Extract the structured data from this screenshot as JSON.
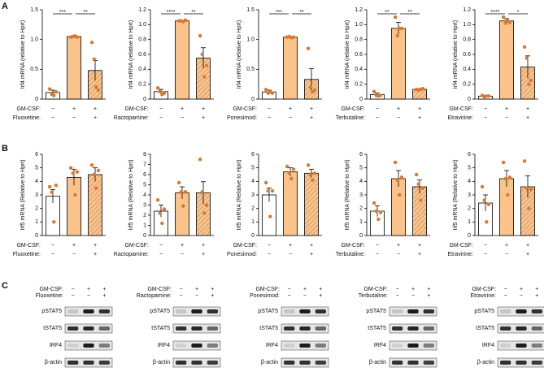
{
  "panel_labels": [
    "A",
    "B",
    "C"
  ],
  "chart_data": [
    {
      "type": "bar",
      "ylabel": "Irf4 mRNA (relative to Hprt)",
      "ylim": [
        0,
        1.5
      ],
      "yticks": [
        0,
        0.5,
        {
          "value": 1,
          "label": "1.0"
        },
        1.5
      ],
      "values": [
        0.11,
        1.05,
        0.48
      ],
      "errors": [
        0.04,
        0.01,
        0.17
      ],
      "points": [
        [
          0.17,
          0.08,
          0.06,
          0.12
        ],
        [
          1.04,
          1.05,
          1.06,
          1.04
        ],
        [
          0.95,
          0.67,
          0.2,
          0.15
        ]
      ],
      "colors": [
        "#ffffff",
        "#fbc38c",
        "#fbc38c"
      ],
      "hatch": [
        false,
        false,
        true
      ],
      "point_color": "#d9782e",
      "rows": [
        {
          "label": "GM-CSF:",
          "signs": [
            "−",
            "+",
            "+"
          ]
        },
        {
          "label": "Fluoxetine:",
          "signs": [
            "−",
            "−",
            "+"
          ]
        }
      ],
      "significance": [
        {
          "from": 0,
          "to": 1,
          "label": "***"
        },
        {
          "from": 1,
          "to": 2,
          "label": "**"
        }
      ]
    },
    {
      "type": "bar",
      "ylabel": "Irf4 mRNA (relative to Hprt)",
      "ylim": [
        0,
        1.2
      ],
      "yticks": [
        0,
        0.2,
        0.4,
        0.6,
        0.8,
        {
          "value": 1,
          "label": "1.0"
        },
        1.2
      ],
      "values": [
        0.1,
        1.05,
        0.55
      ],
      "errors": [
        0.03,
        0.01,
        0.14
      ],
      "points": [
        [
          0.15,
          0.1,
          0.06,
          0.08
        ],
        [
          1.05,
          1.05,
          1.04,
          1.06
        ],
        [
          0.85,
          0.6,
          0.3,
          0.45
        ]
      ],
      "colors": [
        "#ffffff",
        "#fbc38c",
        "#fbc38c"
      ],
      "hatch": [
        false,
        false,
        true
      ],
      "point_color": "#d9782e",
      "rows": [
        {
          "label": "GM-CSF:",
          "signs": [
            "−",
            "+",
            "+"
          ]
        },
        {
          "label": "Ractopamine:",
          "signs": [
            "−",
            "−",
            "+"
          ]
        }
      ],
      "significance": [
        {
          "from": 0,
          "to": 1,
          "label": "****"
        },
        {
          "from": 1,
          "to": 2,
          "label": "**"
        }
      ]
    },
    {
      "type": "bar",
      "ylabel": "Irf4 mRNA (relative to Hprt)",
      "ylim": [
        0,
        1.5
      ],
      "yticks": [
        0,
        0.5,
        {
          "value": 1,
          "label": "1.0"
        },
        1.5
      ],
      "values": [
        0.12,
        1.04,
        0.33
      ],
      "errors": [
        0.03,
        0.01,
        0.18
      ],
      "points": [
        [
          0.16,
          0.1,
          0.12,
          0.1
        ],
        [
          1.04,
          1.05,
          1.03,
          1.04
        ],
        [
          0.85,
          0.2,
          0.12,
          0.15
        ]
      ],
      "colors": [
        "#ffffff",
        "#fbc38c",
        "#fbc38c"
      ],
      "hatch": [
        false,
        false,
        true
      ],
      "point_color": "#d9782e",
      "rows": [
        {
          "label": "GM-CSF:",
          "signs": [
            "−",
            "+",
            "+"
          ]
        },
        {
          "label": "Ponesimod:",
          "signs": [
            "−",
            "−",
            "+"
          ]
        }
      ],
      "significance": [
        {
          "from": 0,
          "to": 1,
          "label": "***"
        },
        {
          "from": 1,
          "to": 2,
          "label": "**"
        }
      ]
    },
    {
      "type": "bar",
      "ylabel": "Irf4 mRNA (relative to Hprt)",
      "ylim": [
        0,
        1.2
      ],
      "yticks": [
        0,
        0.2,
        0.4,
        0.6,
        0.8,
        {
          "value": 1,
          "label": "1.0"
        },
        1.2
      ],
      "values": [
        0.06,
        0.95,
        0.13
      ],
      "errors": [
        0.02,
        0.08,
        0.01
      ],
      "points": [
        [
          0.1,
          0.05,
          0.04,
          0.05
        ],
        [
          1.1,
          0.85,
          0.95,
          0.95
        ],
        [
          0.13,
          0.12,
          0.13,
          0.14
        ]
      ],
      "colors": [
        "#ffffff",
        "#fbc38c",
        "#fbc38c"
      ],
      "hatch": [
        false,
        false,
        true
      ],
      "point_color": "#d9782e",
      "rows": [
        {
          "label": "GM-CSF:",
          "signs": [
            "−",
            "+",
            "+"
          ]
        },
        {
          "label": "Terbutaline:",
          "signs": [
            "−",
            "−",
            "+"
          ]
        }
      ],
      "significance": [
        {
          "from": 0,
          "to": 1,
          "label": "**"
        },
        {
          "from": 1,
          "to": 2,
          "label": "**"
        }
      ]
    },
    {
      "type": "bar",
      "ylabel": "Irf4 mRNA (relative to Hprt)",
      "ylim": [
        0,
        1.2
      ],
      "yticks": [
        0,
        0.2,
        0.4,
        0.6,
        0.8,
        {
          "value": 1,
          "label": "1.0"
        },
        1.2
      ],
      "values": [
        0.04,
        1.05,
        0.43
      ],
      "errors": [
        0.01,
        0.03,
        0.15
      ],
      "points": [
        [
          0.05,
          0.03,
          0.04,
          0.04
        ],
        [
          1.1,
          1.02,
          1.05,
          1.03
        ],
        [
          0.7,
          0.55,
          0.2,
          0.25
        ]
      ],
      "colors": [
        "#ffffff",
        "#fbc38c",
        "#fbc38c"
      ],
      "hatch": [
        false,
        false,
        true
      ],
      "point_color": "#d9782e",
      "rows": [
        {
          "label": "GM-CSF:",
          "signs": [
            "−",
            "+",
            "+"
          ]
        },
        {
          "label": "Etravirine:",
          "signs": [
            "−",
            "−",
            "+"
          ]
        }
      ],
      "significance": [
        {
          "from": 0,
          "to": 1,
          "label": "****"
        },
        {
          "from": 1,
          "to": 2,
          "label": "*"
        }
      ]
    },
    {
      "type": "bar",
      "ylabel": "Irf5 mRNA (Relative to Hprt)",
      "ylim": [
        0,
        6
      ],
      "yticks": [
        0,
        1,
        2,
        3,
        4,
        5,
        6
      ],
      "values": [
        2.9,
        4.3,
        4.5
      ],
      "errors": [
        0.5,
        0.6,
        0.5
      ],
      "points": [
        [
          3.6,
          3.2,
          1.0,
          3.7
        ],
        [
          5.0,
          4.6,
          3.0,
          4.7
        ],
        [
          5.2,
          4.5,
          3.5,
          4.8
        ]
      ],
      "colors": [
        "#ffffff",
        "#fbc38c",
        "#fbc38c"
      ],
      "hatch": [
        false,
        false,
        true
      ],
      "point_color": "#d9782e",
      "rows": [
        {
          "label": "GM-CSF:",
          "signs": [
            "−",
            "+",
            "+"
          ]
        },
        {
          "label": "Fluoxetine:",
          "signs": [
            "−",
            "−",
            "+"
          ]
        }
      ],
      "significance": []
    },
    {
      "type": "bar",
      "ylabel": "Irf5 mRNA (Relative to Hprt)",
      "ylim": [
        0,
        8
      ],
      "yticks": [
        0,
        1,
        2,
        3,
        4,
        5,
        6,
        7,
        8
      ],
      "values": [
        2.4,
        4.2,
        4.2
      ],
      "errors": [
        0.6,
        0.6,
        1.1
      ],
      "points": [
        [
          3.5,
          2.2,
          1.2,
          2.6
        ],
        [
          5.2,
          4.3,
          2.9,
          4.3
        ],
        [
          7.5,
          4.3,
          2.2,
          3.0
        ]
      ],
      "colors": [
        "#ffffff",
        "#fbc38c",
        "#fbc38c"
      ],
      "hatch": [
        false,
        false,
        true
      ],
      "point_color": "#d9782e",
      "rows": [
        {
          "label": "GM-CSF:",
          "signs": [
            "−",
            "+",
            "+"
          ]
        },
        {
          "label": "Ractopamine:",
          "signs": [
            "−",
            "−",
            "+"
          ]
        }
      ],
      "significance": []
    },
    {
      "type": "bar",
      "ylabel": "Irf5 mRNA (Relative to Hprt)",
      "ylim": [
        0,
        6
      ],
      "yticks": [
        0,
        1,
        2,
        3,
        4,
        5,
        6
      ],
      "values": [
        3.0,
        4.7,
        4.6
      ],
      "errors": [
        0.5,
        0.3,
        0.3
      ],
      "points": [
        [
          3.9,
          3.3,
          1.4,
          3.3
        ],
        [
          5.1,
          4.6,
          4.2,
          4.9
        ],
        [
          5.2,
          4.5,
          4.1,
          4.6
        ]
      ],
      "colors": [
        "#ffffff",
        "#fbc38c",
        "#fbc38c"
      ],
      "hatch": [
        false,
        false,
        true
      ],
      "point_color": "#d9782e",
      "rows": [
        {
          "label": "GM-CSF:",
          "signs": [
            "−",
            "+",
            "+"
          ]
        },
        {
          "label": "Ponesimod:",
          "signs": [
            "−",
            "−",
            "+"
          ]
        }
      ],
      "significance": []
    },
    {
      "type": "bar",
      "ylabel": "Irf5 mRNA (Relative to Hprt)",
      "ylim": [
        0,
        6
      ],
      "yticks": [
        0,
        1,
        2,
        3,
        4,
        5,
        6
      ],
      "values": [
        1.8,
        4.2,
        3.6
      ],
      "errors": [
        0.4,
        0.6,
        0.5
      ],
      "points": [
        [
          2.4,
          1.8,
          1.2,
          1.7
        ],
        [
          5.4,
          4.1,
          3.0,
          4.3
        ],
        [
          4.5,
          3.8,
          2.6,
          3.5
        ]
      ],
      "colors": [
        "#ffffff",
        "#fbc38c",
        "#fbc38c"
      ],
      "hatch": [
        false,
        false,
        true
      ],
      "point_color": "#d9782e",
      "rows": [
        {
          "label": "GM-CSF:",
          "signs": [
            "−",
            "+",
            "+"
          ]
        },
        {
          "label": "Terbutaline:",
          "signs": [
            "−",
            "−",
            "+"
          ]
        }
      ],
      "significance": []
    },
    {
      "type": "bar",
      "ylabel": "Irf5 mRNA (Relative to Hprt)",
      "ylim": [
        0,
        6
      ],
      "yticks": [
        0,
        1,
        2,
        3,
        4,
        5,
        6
      ],
      "values": [
        2.4,
        4.2,
        3.6
      ],
      "errors": [
        0.6,
        0.6,
        0.8
      ],
      "points": [
        [
          3.6,
          2.6,
          1.0,
          2.3
        ],
        [
          5.4,
          4.2,
          3.0,
          4.3
        ],
        [
          5.5,
          3.5,
          2.0,
          3.4
        ]
      ],
      "colors": [
        "#ffffff",
        "#fbc38c",
        "#fbc38c"
      ],
      "hatch": [
        false,
        false,
        true
      ],
      "point_color": "#d9782e",
      "rows": [
        {
          "label": "GM-CSF:",
          "signs": [
            "−",
            "+",
            "+"
          ]
        },
        {
          "label": "Etravirine:",
          "signs": [
            "−",
            "−",
            "+"
          ]
        }
      ],
      "significance": []
    }
  ],
  "blots": [
    {
      "rows": [
        {
          "label": "GM-CSF:",
          "signs": [
            "−",
            "+",
            "+"
          ]
        },
        {
          "label": "Fluoxetine:",
          "signs": [
            "−",
            "−",
            "+"
          ]
        }
      ],
      "bands": [
        "pSTAT5",
        "tSTAT5",
        "IRF4",
        "β-actin"
      ]
    },
    {
      "rows": [
        {
          "label": "GM-CSF:",
          "signs": [
            "−",
            "+",
            "+"
          ]
        },
        {
          "label": "Ractopamine:",
          "signs": [
            "−",
            "−",
            "+"
          ]
        }
      ],
      "bands": [
        "pSTAT5",
        "tSTAT5",
        "IRF4",
        "β-actin"
      ]
    },
    {
      "rows": [
        {
          "label": "GM-CSF:",
          "signs": [
            "−",
            "+",
            "+"
          ]
        },
        {
          "label": "Ponesimod:",
          "signs": [
            "−",
            "−",
            "+"
          ]
        }
      ],
      "bands": [
        "pSTAT5",
        "tSTAT5",
        "IRF4",
        "β-actin"
      ]
    },
    {
      "rows": [
        {
          "label": "GM-CSF:",
          "signs": [
            "−",
            "+",
            "+"
          ]
        },
        {
          "label": "Terbutaline:",
          "signs": [
            "−",
            "−",
            "+"
          ]
        }
      ],
      "bands": [
        "pSTAT5",
        "tSTAT5",
        "IRF4",
        "β-actin"
      ]
    },
    {
      "rows": [
        {
          "label": "GM-CSF:",
          "signs": [
            "−",
            "+",
            "+"
          ]
        },
        {
          "label": "Etravirine:",
          "signs": [
            "−",
            "−",
            "+"
          ]
        }
      ],
      "bands": [
        "pSTAT5",
        "tSTAT5",
        "IRF4",
        "β-actin"
      ]
    }
  ]
}
